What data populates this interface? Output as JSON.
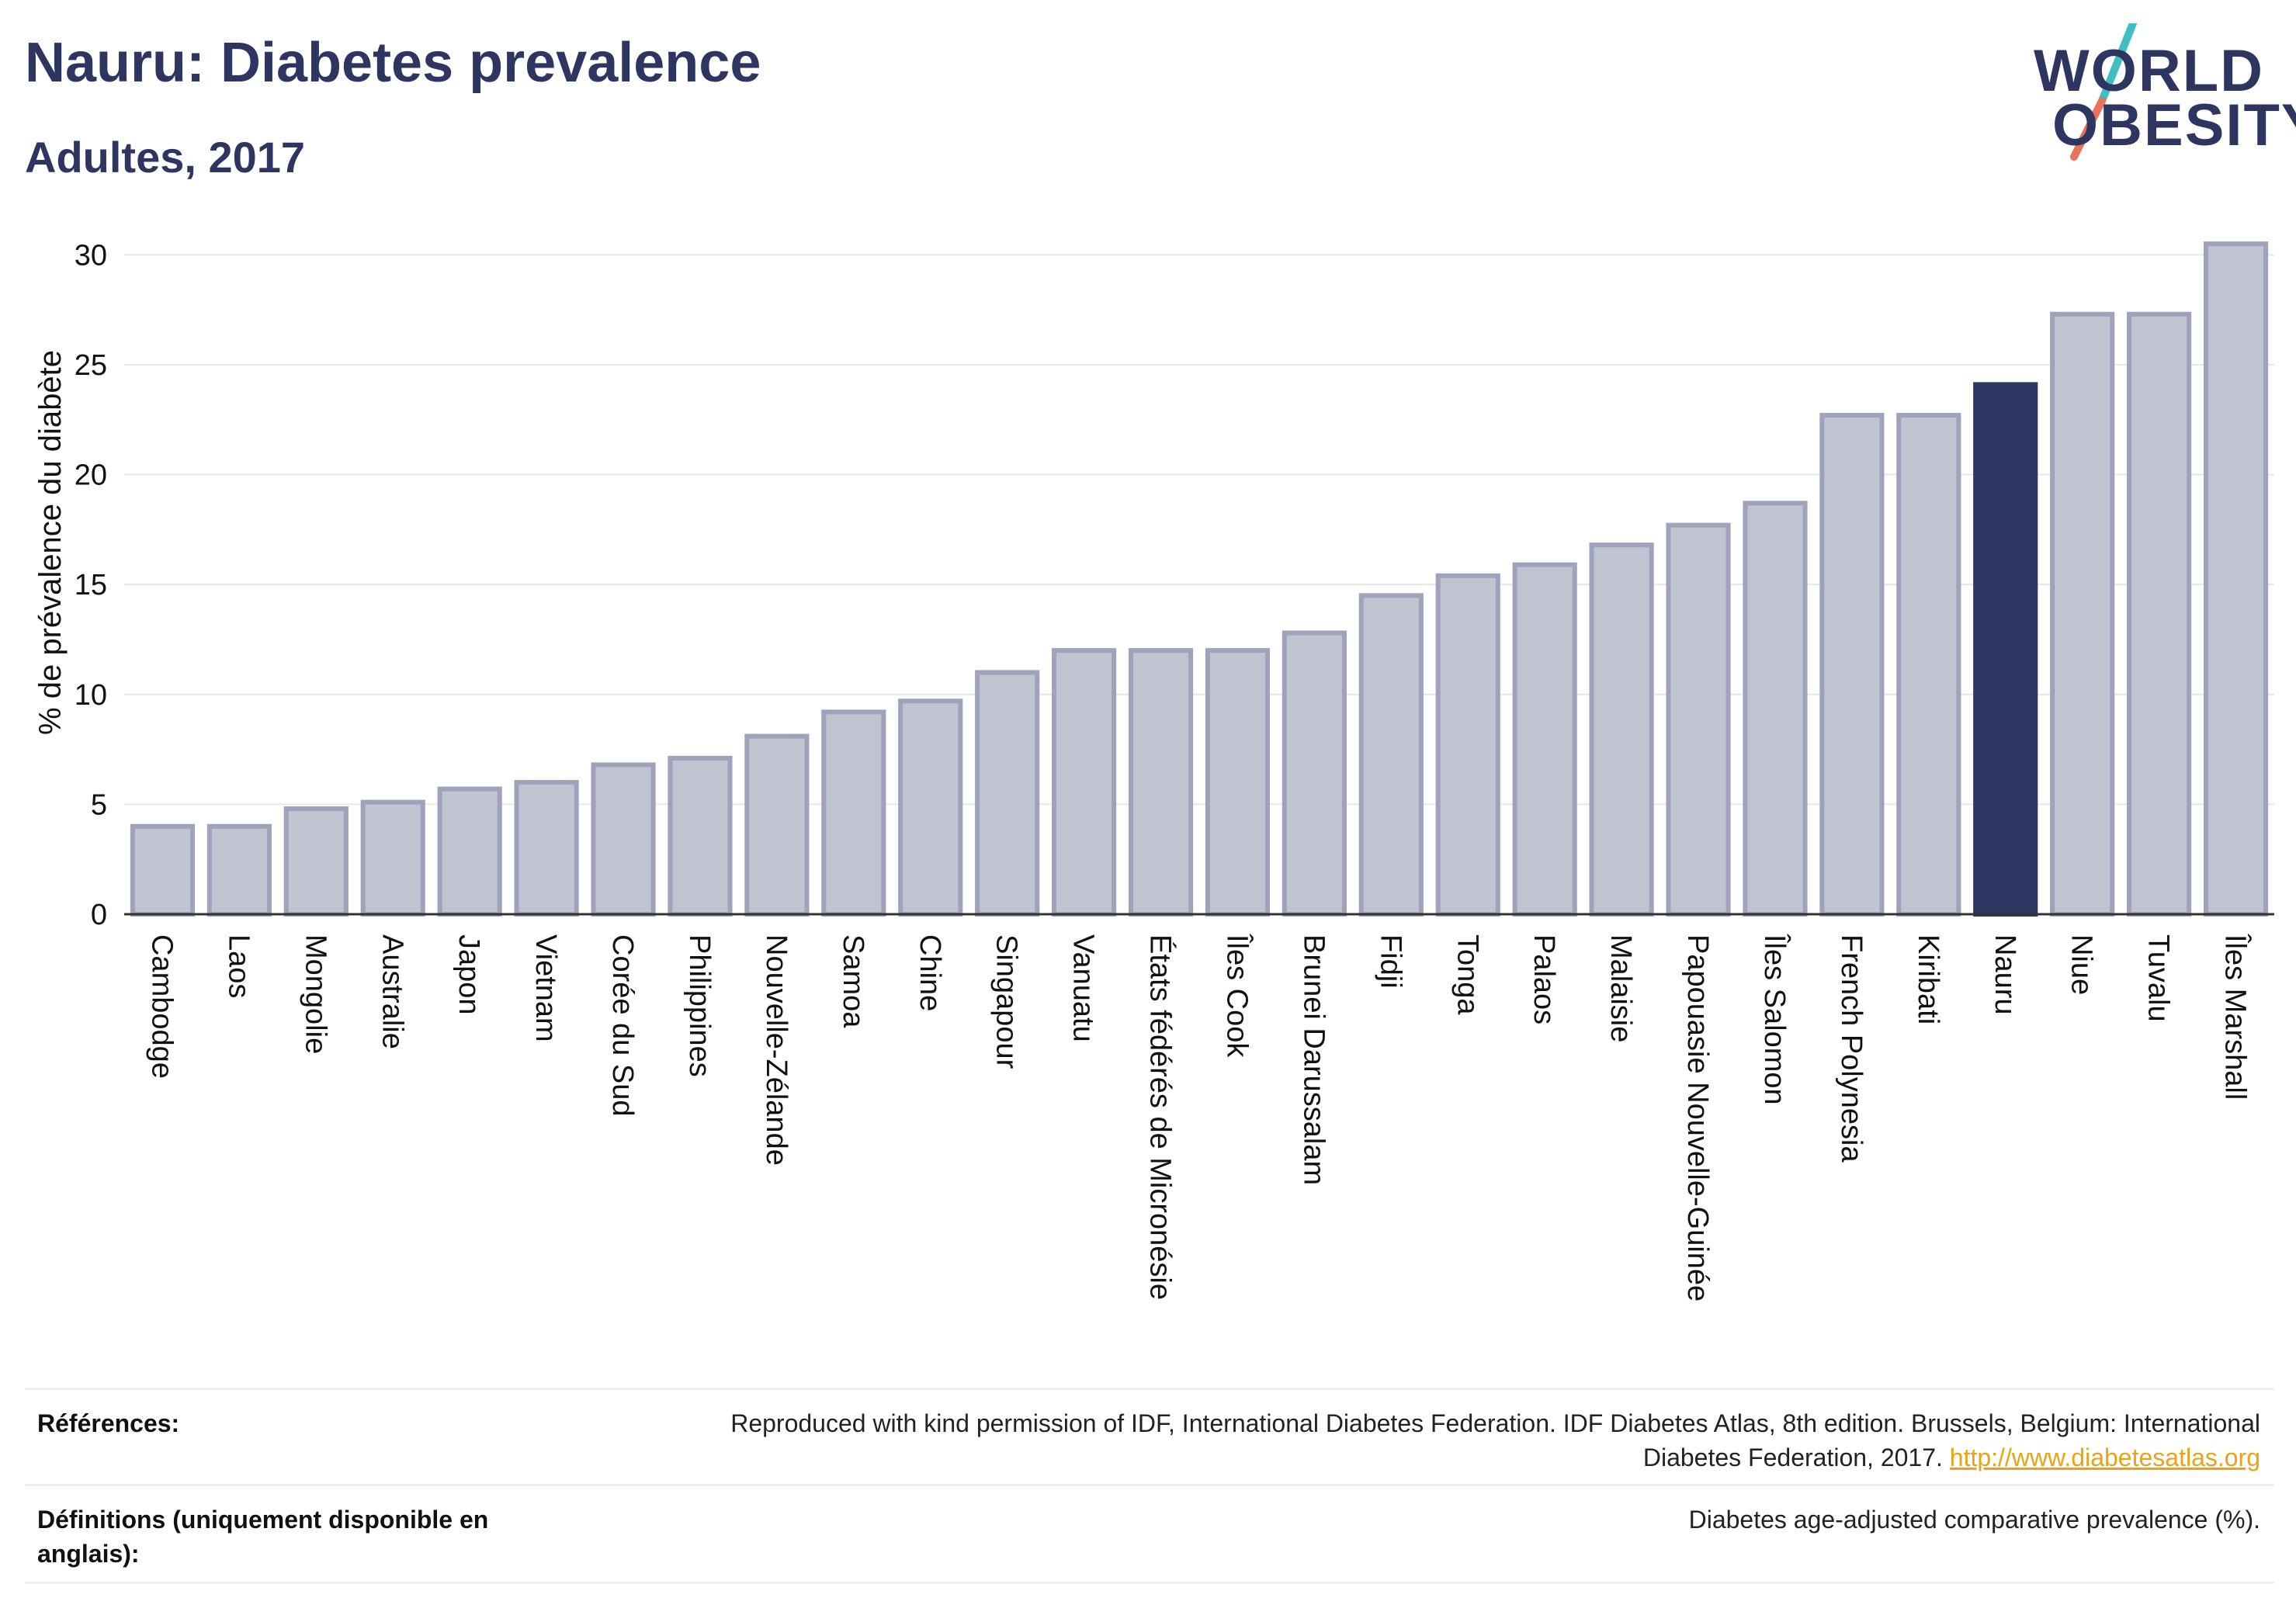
{
  "title": "Nauru: Diabetes prevalence",
  "subtitle": "Adultes, 2017",
  "logo": {
    "line1": "WORLD",
    "line2": "OBESITY"
  },
  "colors": {
    "highlight": "#2d3561",
    "bar_fill": "#c0c3d0",
    "bar_stroke": "#9ea2ba",
    "accent_teal": "#3fbfbf",
    "accent_coral": "#e8735a",
    "link": "#e8a316"
  },
  "references": {
    "label": "Références:",
    "text": "Reproduced with kind permission of IDF, International Diabetes Federation. IDF Diabetes Atlas, 8th edition. Brussels, Belgium: International Diabetes Federation, 2017.",
    "link": "http://www.diabetesatlas.org"
  },
  "definitions": {
    "label": "Définitions (uniquement disponible en anglais):",
    "text": "Diabetes age-adjusted comparative prevalence (%)."
  },
  "chart_data": {
    "type": "bar",
    "title": "Nauru: Diabetes prevalence",
    "subtitle": "Adultes, 2017",
    "xlabel": "",
    "ylabel": "% de prévalence du diabète",
    "ylim": [
      0,
      31
    ],
    "yticks": [
      0,
      5,
      10,
      15,
      20,
      25,
      30
    ],
    "grid": true,
    "highlight": "Nauru",
    "categories": [
      "Cambodge",
      "Laos",
      "Mongolie",
      "Australie",
      "Japon",
      "Vietnam",
      "Corée du Sud",
      "Philippines",
      "Nouvelle-Zélande",
      "Samoa",
      "Chine",
      "Singapour",
      "Vanuatu",
      "États fédérés de Micronésie",
      "Îles Cook",
      "Brunei Darussalam",
      "Fidji",
      "Tonga",
      "Palaos",
      "Malaisie",
      "Papouasie Nouvelle-Guinée",
      "Îles Salomon",
      "French Polynesia",
      "Kiribati",
      "Nauru",
      "Niue",
      "Tuvalu",
      "Îles Marshall"
    ],
    "values": [
      4.0,
      4.0,
      4.8,
      5.1,
      5.7,
      6.0,
      6.8,
      7.1,
      8.1,
      9.2,
      9.7,
      11.0,
      12.0,
      12.0,
      12.0,
      12.8,
      14.5,
      15.4,
      15.9,
      16.8,
      17.7,
      18.7,
      22.7,
      22.7,
      24.1,
      27.3,
      27.3,
      30.5
    ]
  }
}
